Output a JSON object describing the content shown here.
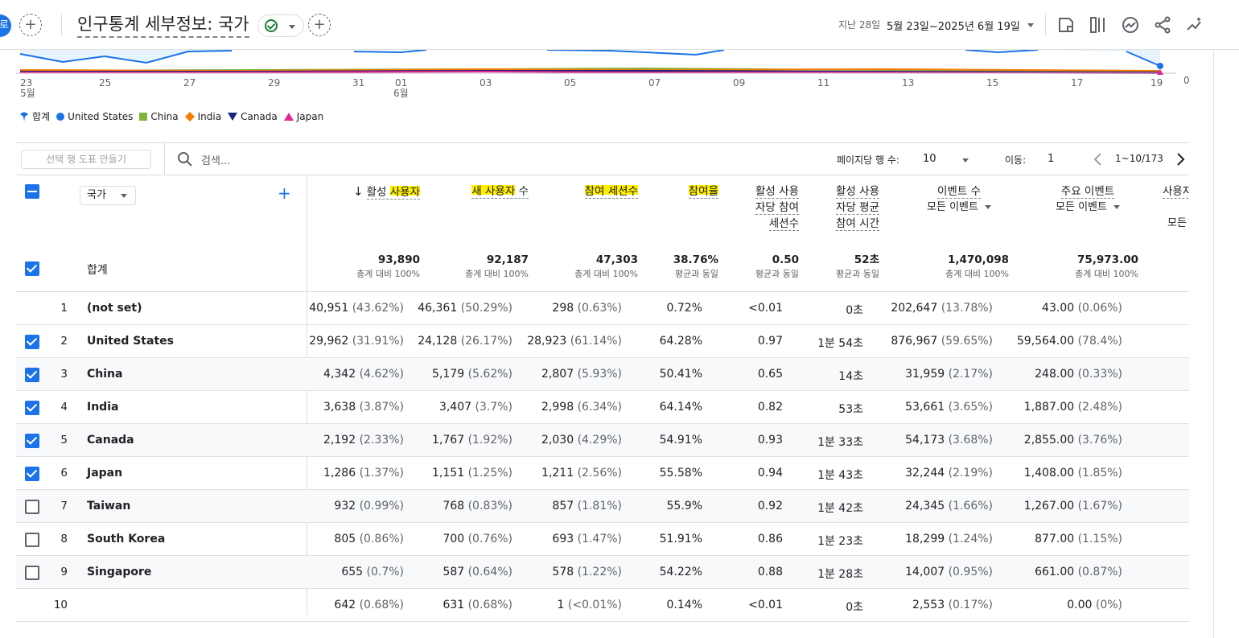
{
  "header": {
    "avatar_initial": "로",
    "title": "인구통계 세부정보: 국가",
    "date_prefix": "지난 28일",
    "date_range": "5월 23일~2025년 6월 19일",
    "icons": [
      "customize-report-icon",
      "compare-icon",
      "insights-icon",
      "share-icon",
      "sparkle-icon"
    ]
  },
  "chart": {
    "x_ticks": [
      "23",
      "25",
      "27",
      "29",
      "31",
      "01",
      "03",
      "05",
      "07",
      "09",
      "11",
      "13",
      "15",
      "17",
      "19"
    ],
    "x_month_start": "5월",
    "x_month_june": "6월",
    "y_tick_zero": "0"
  },
  "legend": [
    {
      "name": "합계",
      "color": "#1a73e8",
      "shape": "pin"
    },
    {
      "name": "United States",
      "color": "#1a73e8",
      "shape": "circle"
    },
    {
      "name": "China",
      "color": "#7cb342",
      "shape": "square"
    },
    {
      "name": "India",
      "color": "#f57c00",
      "shape": "diamond"
    },
    {
      "name": "Canada",
      "color": "#1a237e",
      "shape": "triangle-down"
    },
    {
      "name": "Japan",
      "color": "#e52592",
      "shape": "triangle-up"
    }
  ],
  "toolbar": {
    "make_plot_label": "선택 행 도표 만들기",
    "search_placeholder": "검색...",
    "rows_per_page_label": "페이지당 행 수:",
    "rows_per_page_value": "10",
    "goto_label": "이동:",
    "goto_value": "1",
    "page_range": "1~10/173"
  },
  "table": {
    "dimension": "국가",
    "headers": {
      "active_users": {
        "pre": "활성 ",
        "hl": "사용자"
      },
      "new_users": {
        "hl": "새 사용자",
        "post": " 수"
      },
      "engaged_sessions": "참여 세션수",
      "engagement_rate": "참여율",
      "eng_sessions_per_user": [
        "활성 사용",
        "자당 참여",
        "세션수"
      ],
      "avg_eng_time": [
        "활성 사용",
        "자당 평균",
        "참여 시간"
      ],
      "event_count": "이벤트 수",
      "event_count_sub": "모든 이벤트",
      "key_events": "주요 이벤트",
      "key_events_sub": "모든 이벤트",
      "user_cut": "사용자",
      "user_cut_sub": "모든"
    },
    "totals_label": "합계",
    "totals": [
      {
        "v": "93,890",
        "s": "총계 대비 100%"
      },
      {
        "v": "92,187",
        "s": "총계 대비 100%"
      },
      {
        "v": "47,303",
        "s": "총계 대비 100%"
      },
      {
        "v": "38.76%",
        "s": "평균과 동일"
      },
      {
        "v": "0.50",
        "s": "평균과 동일"
      },
      {
        "v": "52초",
        "s": "평균과 동일"
      },
      {
        "v": "1,470,098",
        "s": "총계 대비 100%"
      },
      {
        "v": "75,973.00",
        "s": "총계 대비 100%"
      }
    ],
    "rows": [
      {
        "i": "1",
        "n": "(not set)",
        "cb": "none",
        "au": "40,951",
        "aup": "(43.62%)",
        "nu": "46,361",
        "nup": "(50.29%)",
        "es": "298",
        "esp": "(0.63%)",
        "er": "0.72%",
        "spu": "<0.01",
        "t": "0초",
        "ev": "202,647",
        "evp": "(13.78%)",
        "ke": "43.00",
        "kep": "(0.06%)"
      },
      {
        "i": "2",
        "n": "United States",
        "cb": "on",
        "au": "29,962",
        "aup": "(31.91%)",
        "nu": "24,128",
        "nup": "(26.17%)",
        "es": "28,923",
        "esp": "(61.14%)",
        "er": "64.28%",
        "spu": "0.97",
        "t": "1분 54초",
        "ev": "876,967",
        "evp": "(59.65%)",
        "ke": "59,564.00",
        "kep": "(78.4%)"
      },
      {
        "i": "3",
        "n": "China",
        "cb": "on",
        "au": "4,342",
        "aup": "(4.62%)",
        "nu": "5,179",
        "nup": "(5.62%)",
        "es": "2,807",
        "esp": "(5.93%)",
        "er": "50.41%",
        "spu": "0.65",
        "t": "14초",
        "ev": "31,959",
        "evp": "(2.17%)",
        "ke": "248.00",
        "kep": "(0.33%)"
      },
      {
        "i": "4",
        "n": "India",
        "cb": "on",
        "au": "3,638",
        "aup": "(3.87%)",
        "nu": "3,407",
        "nup": "(3.7%)",
        "es": "2,998",
        "esp": "(6.34%)",
        "er": "64.14%",
        "spu": "0.82",
        "t": "53초",
        "ev": "53,661",
        "evp": "(3.65%)",
        "ke": "1,887.00",
        "kep": "(2.48%)"
      },
      {
        "i": "5",
        "n": "Canada",
        "cb": "on",
        "au": "2,192",
        "aup": "(2.33%)",
        "nu": "1,767",
        "nup": "(1.92%)",
        "es": "2,030",
        "esp": "(4.29%)",
        "er": "54.91%",
        "spu": "0.93",
        "t": "1분 33초",
        "ev": "54,173",
        "evp": "(3.68%)",
        "ke": "2,855.00",
        "kep": "(3.76%)"
      },
      {
        "i": "6",
        "n": "Japan",
        "cb": "on",
        "au": "1,286",
        "aup": "(1.37%)",
        "nu": "1,151",
        "nup": "(1.25%)",
        "es": "1,211",
        "esp": "(2.56%)",
        "er": "55.58%",
        "spu": "0.94",
        "t": "1분 43초",
        "ev": "32,244",
        "evp": "(2.19%)",
        "ke": "1,408.00",
        "kep": "(1.85%)"
      },
      {
        "i": "7",
        "n": "Taiwan",
        "cb": "off",
        "au": "932",
        "aup": "(0.99%)",
        "nu": "768",
        "nup": "(0.83%)",
        "es": "857",
        "esp": "(1.81%)",
        "er": "55.9%",
        "spu": "0.92",
        "t": "1분 42초",
        "ev": "24,345",
        "evp": "(1.66%)",
        "ke": "1,267.00",
        "kep": "(1.67%)"
      },
      {
        "i": "8",
        "n": "South Korea",
        "cb": "off",
        "au": "805",
        "aup": "(0.86%)",
        "nu": "700",
        "nup": "(0.76%)",
        "es": "693",
        "esp": "(1.47%)",
        "er": "51.91%",
        "spu": "0.86",
        "t": "1분 23초",
        "ev": "18,299",
        "evp": "(1.24%)",
        "ke": "877.00",
        "kep": "(1.15%)"
      },
      {
        "i": "9",
        "n": "Singapore",
        "cb": "off",
        "au": "655",
        "aup": "(0.7%)",
        "nu": "587",
        "nup": "(0.64%)",
        "es": "578",
        "esp": "(1.22%)",
        "er": "54.22%",
        "spu": "0.88",
        "t": "1분 28초",
        "ev": "14,007",
        "evp": "(0.95%)",
        "ke": "661.00",
        "kep": "(0.87%)"
      },
      {
        "i": "10",
        "n": "",
        "cb": "none",
        "au": "642",
        "aup": "(0.68%)",
        "nu": "631",
        "nup": "(0.68%)",
        "es": "1",
        "esp": "(<0.01%)",
        "er": "0.14%",
        "spu": "<0.01",
        "t": "0초",
        "ev": "2,553",
        "evp": "(0.17%)",
        "ke": "0.00",
        "kep": "(0%)"
      }
    ]
  }
}
